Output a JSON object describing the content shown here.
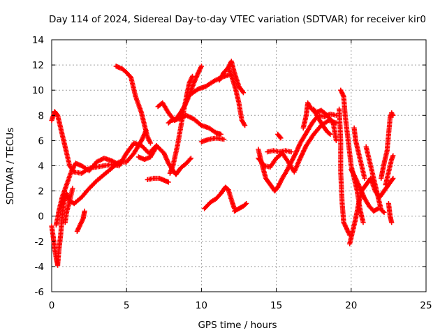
{
  "chart_data": {
    "type": "scatter",
    "title": "Day 114 of 2024, Sidereal Day-to-day VTEC variation (SDTVAR) for receiver kir0",
    "xlabel": "GPS time / hours",
    "ylabel": "SDTVAR / TECUs",
    "xlim": [
      0,
      25
    ],
    "ylim": [
      -6,
      14
    ],
    "xticks": [
      "0",
      "5",
      "10",
      "15",
      "20",
      "25"
    ],
    "yticks": [
      "-6",
      "-4",
      "-2",
      "0",
      "2",
      "4",
      "6",
      "8",
      "10",
      "12",
      "14"
    ],
    "grid": true,
    "marker": "+",
    "color": "#ff0000",
    "series": [
      {
        "name": "arc-01",
        "points": [
          [
            0.0,
            7.6
          ],
          [
            0.2,
            8.3
          ],
          [
            0.4,
            8.0
          ],
          [
            0.6,
            7.0
          ],
          [
            0.8,
            6.0
          ],
          [
            1.0,
            5.0
          ],
          [
            1.2,
            4.0
          ],
          [
            1.5,
            3.5
          ],
          [
            2.0,
            3.4
          ],
          [
            2.5,
            3.8
          ],
          [
            3.0,
            3.9
          ],
          [
            3.5,
            4.0
          ],
          [
            4.0,
            4.1
          ],
          [
            4.5,
            4.0
          ]
        ]
      },
      {
        "name": "arc-02",
        "points": [
          [
            0.0,
            -0.8
          ],
          [
            0.1,
            -1.6
          ],
          [
            0.2,
            -2.6
          ],
          [
            0.3,
            -3.3
          ],
          [
            0.4,
            -3.9
          ],
          [
            0.5,
            -2.5
          ],
          [
            0.6,
            -1.5
          ],
          [
            0.7,
            0.0
          ],
          [
            0.8,
            1.0
          ],
          [
            1.0,
            1.8
          ],
          [
            1.2,
            1.2
          ],
          [
            1.5,
            1.0
          ],
          [
            2.0,
            1.5
          ],
          [
            2.5,
            2.2
          ],
          [
            3.0,
            2.8
          ],
          [
            3.5,
            3.3
          ],
          [
            4.0,
            3.8
          ],
          [
            4.5,
            4.3
          ],
          [
            5.0,
            4.3
          ],
          [
            5.5,
            5.0
          ],
          [
            6.0,
            6.0
          ],
          [
            6.3,
            6.8
          ]
        ]
      },
      {
        "name": "arc-03",
        "points": [
          [
            0.3,
            -0.7
          ],
          [
            0.5,
            0.5
          ],
          [
            0.7,
            1.5
          ],
          [
            1.0,
            2.5
          ],
          [
            1.3,
            3.5
          ],
          [
            1.6,
            4.2
          ],
          [
            2.0,
            4.0
          ],
          [
            2.5,
            3.6
          ],
          [
            3.0,
            4.3
          ],
          [
            3.5,
            4.6
          ],
          [
            4.0,
            4.4
          ],
          [
            4.5,
            4.1
          ]
        ]
      },
      {
        "name": "arc-04",
        "points": [
          [
            0.9,
            -0.5
          ],
          [
            1.0,
            0.3
          ],
          [
            1.2,
            1.2
          ],
          [
            1.4,
            2.2
          ]
        ]
      },
      {
        "name": "arc-05",
        "points": [
          [
            1.7,
            -1.2
          ],
          [
            1.9,
            -0.7
          ],
          [
            2.1,
            -0.2
          ],
          [
            2.2,
            0.4
          ]
        ]
      },
      {
        "name": "arc-06",
        "points": [
          [
            4.3,
            11.9
          ],
          [
            4.7,
            11.7
          ],
          [
            5.0,
            11.4
          ],
          [
            5.3,
            11.0
          ],
          [
            5.6,
            9.5
          ],
          [
            6.0,
            8.2
          ],
          [
            6.2,
            7.2
          ],
          [
            6.4,
            6.3
          ],
          [
            6.6,
            5.8
          ]
        ]
      },
      {
        "name": "arc-07",
        "points": [
          [
            4.5,
            4.0
          ],
          [
            5.0,
            5.0
          ],
          [
            5.5,
            5.8
          ],
          [
            6.0,
            5.6
          ],
          [
            6.5,
            5.0
          ],
          [
            7.0,
            5.6
          ],
          [
            7.5,
            5.0
          ],
          [
            7.8,
            4.2
          ],
          [
            8.0,
            3.8
          ],
          [
            8.3,
            3.3
          ],
          [
            8.6,
            3.8
          ],
          [
            9.0,
            4.2
          ],
          [
            9.3,
            4.6
          ]
        ]
      },
      {
        "name": "arc-08",
        "points": [
          [
            5.8,
            4.7
          ],
          [
            6.2,
            4.5
          ],
          [
            6.6,
            4.7
          ],
          [
            7.0,
            5.5
          ]
        ]
      },
      {
        "name": "arc-09",
        "points": [
          [
            6.4,
            2.9
          ],
          [
            6.8,
            3.0
          ],
          [
            7.2,
            3.0
          ],
          [
            7.6,
            2.8
          ],
          [
            7.8,
            2.7
          ]
        ]
      },
      {
        "name": "arc-10",
        "points": [
          [
            7.1,
            8.7
          ],
          [
            7.4,
            9.0
          ],
          [
            7.8,
            8.2
          ],
          [
            8.2,
            7.6
          ],
          [
            8.6,
            7.8
          ],
          [
            9.0,
            8.0
          ],
          [
            9.5,
            7.7
          ],
          [
            10.0,
            7.2
          ],
          [
            10.5,
            7.0
          ],
          [
            11.0,
            6.6
          ],
          [
            11.3,
            6.5
          ]
        ]
      },
      {
        "name": "arc-11",
        "points": [
          [
            7.8,
            7.4
          ],
          [
            8.0,
            7.6
          ],
          [
            8.3,
            7.7
          ],
          [
            8.6,
            8.2
          ],
          [
            8.9,
            8.8
          ],
          [
            9.2,
            9.6
          ],
          [
            9.5,
            10.6
          ],
          [
            9.8,
            11.4
          ],
          [
            10.0,
            11.9
          ]
        ]
      },
      {
        "name": "arc-12",
        "points": [
          [
            7.9,
            3.4
          ],
          [
            8.1,
            4.0
          ],
          [
            8.4,
            5.6
          ],
          [
            8.7,
            7.6
          ],
          [
            9.0,
            9.5
          ],
          [
            9.2,
            10.6
          ],
          [
            9.4,
            11.1
          ]
        ]
      },
      {
        "name": "arc-13",
        "points": [
          [
            9.3,
            9.7
          ],
          [
            9.8,
            10.1
          ],
          [
            10.3,
            10.3
          ],
          [
            10.8,
            10.7
          ],
          [
            11.3,
            11.0
          ],
          [
            11.8,
            11.2
          ],
          [
            12.0,
            11.2
          ]
        ]
      },
      {
        "name": "arc-14",
        "points": [
          [
            10.0,
            5.9
          ],
          [
            10.5,
            6.1
          ],
          [
            11.0,
            6.2
          ],
          [
            11.5,
            6.1
          ]
        ]
      },
      {
        "name": "arc-15",
        "points": [
          [
            10.2,
            0.6
          ],
          [
            10.6,
            1.1
          ],
          [
            11.0,
            1.4
          ],
          [
            11.3,
            1.8
          ],
          [
            11.6,
            2.3
          ],
          [
            11.8,
            2.1
          ],
          [
            12.0,
            1.3
          ],
          [
            12.2,
            0.6
          ]
        ]
      },
      {
        "name": "arc-16",
        "points": [
          [
            11.2,
            10.8
          ],
          [
            11.5,
            11.4
          ],
          [
            11.8,
            11.8
          ],
          [
            12.0,
            12.3
          ],
          [
            12.2,
            11.4
          ],
          [
            12.5,
            10.3
          ],
          [
            12.8,
            9.8
          ]
        ]
      },
      {
        "name": "arc-17",
        "points": [
          [
            11.8,
            11.8
          ],
          [
            12.1,
            10.8
          ],
          [
            12.3,
            10.0
          ],
          [
            12.5,
            9.0
          ],
          [
            12.7,
            7.6
          ],
          [
            12.9,
            7.2
          ]
        ]
      },
      {
        "name": "arc-18",
        "points": [
          [
            12.2,
            0.4
          ],
          [
            12.5,
            0.6
          ],
          [
            12.8,
            0.8
          ],
          [
            13.0,
            1.0
          ]
        ]
      },
      {
        "name": "arc-19",
        "points": [
          [
            13.8,
            5.3
          ],
          [
            14.0,
            4.3
          ],
          [
            14.3,
            3.0
          ],
          [
            14.6,
            2.5
          ],
          [
            14.9,
            2.0
          ],
          [
            15.1,
            2.3
          ],
          [
            15.4,
            3.0
          ],
          [
            15.7,
            3.6
          ],
          [
            16.0,
            4.3
          ],
          [
            16.3,
            5.0
          ],
          [
            16.6,
            5.8
          ],
          [
            17.0,
            6.6
          ],
          [
            17.4,
            7.4
          ],
          [
            17.8,
            8.0
          ],
          [
            18.2,
            7.9
          ],
          [
            18.6,
            8.1
          ],
          [
            19.0,
            8.0
          ]
        ]
      },
      {
        "name": "arc-20",
        "points": [
          [
            13.8,
            4.6
          ],
          [
            14.2,
            4.0
          ],
          [
            14.6,
            3.9
          ],
          [
            15.0,
            4.6
          ],
          [
            15.4,
            5.0
          ],
          [
            15.8,
            4.3
          ],
          [
            16.2,
            3.5
          ],
          [
            16.6,
            4.6
          ],
          [
            17.0,
            5.6
          ],
          [
            17.5,
            6.5
          ],
          [
            18.0,
            7.2
          ],
          [
            18.5,
            7.6
          ],
          [
            19.0,
            7.4
          ]
        ]
      },
      {
        "name": "arc-21",
        "points": [
          [
            14.4,
            5.1
          ],
          [
            14.8,
            5.2
          ],
          [
            15.2,
            5.1
          ],
          [
            15.6,
            5.2
          ],
          [
            16.0,
            5.1
          ]
        ]
      },
      {
        "name": "arc-22",
        "points": [
          [
            15.1,
            6.5
          ],
          [
            15.3,
            6.2
          ]
        ]
      },
      {
        "name": "arc-23",
        "points": [
          [
            16.8,
            7.0
          ],
          [
            17.0,
            8.0
          ],
          [
            17.1,
            9.0
          ],
          [
            17.3,
            8.6
          ],
          [
            17.6,
            8.2
          ],
          [
            18.0,
            8.4
          ],
          [
            18.4,
            8.0
          ],
          [
            18.8,
            7.4
          ],
          [
            19.0,
            6.0
          ]
        ]
      },
      {
        "name": "arc-24",
        "points": [
          [
            17.5,
            8.5
          ],
          [
            17.8,
            7.8
          ],
          [
            18.1,
            7.2
          ],
          [
            18.4,
            6.7
          ],
          [
            18.6,
            6.5
          ]
        ]
      },
      {
        "name": "arc-25",
        "points": [
          [
            19.3,
            10.0
          ],
          [
            19.5,
            9.5
          ],
          [
            19.6,
            8.0
          ],
          [
            19.8,
            6.0
          ],
          [
            20.0,
            4.0
          ],
          [
            20.2,
            3.0
          ],
          [
            20.4,
            2.0
          ],
          [
            20.6,
            0.5
          ],
          [
            20.8,
            -0.5
          ]
        ]
      },
      {
        "name": "arc-26",
        "points": [
          [
            19.2,
            8.5
          ],
          [
            19.3,
            6.0
          ],
          [
            19.3,
            3.5
          ],
          [
            19.4,
            1.0
          ],
          [
            19.5,
            -0.5
          ],
          [
            19.7,
            -1.0
          ],
          [
            19.9,
            -1.5
          ]
        ]
      },
      {
        "name": "arc-27",
        "points": [
          [
            19.9,
            -2.2
          ],
          [
            20.1,
            -1.2
          ],
          [
            20.3,
            -0.2
          ],
          [
            20.5,
            1.0
          ],
          [
            20.7,
            2.0
          ],
          [
            21.0,
            2.5
          ],
          [
            21.3,
            3.0
          ],
          [
            21.6,
            2.0
          ],
          [
            21.9,
            1.5
          ],
          [
            22.2,
            2.0
          ],
          [
            22.5,
            2.5
          ],
          [
            22.8,
            3.0
          ]
        ]
      },
      {
        "name": "arc-28",
        "points": [
          [
            20.0,
            3.7
          ],
          [
            20.3,
            3.0
          ],
          [
            20.6,
            2.2
          ],
          [
            20.9,
            1.4
          ],
          [
            21.2,
            0.8
          ],
          [
            21.5,
            0.4
          ],
          [
            21.8,
            0.6
          ]
        ]
      },
      {
        "name": "arc-29",
        "points": [
          [
            20.2,
            7.0
          ],
          [
            20.3,
            6.0
          ],
          [
            20.5,
            5.0
          ],
          [
            20.7,
            4.0
          ],
          [
            20.9,
            3.0
          ]
        ]
      },
      {
        "name": "arc-30",
        "points": [
          [
            21.0,
            5.5
          ],
          [
            21.2,
            4.5
          ],
          [
            21.4,
            3.5
          ],
          [
            21.6,
            2.5
          ],
          [
            21.8,
            1.5
          ],
          [
            22.0,
            0.5
          ],
          [
            22.2,
            0.3
          ]
        ]
      },
      {
        "name": "arc-31",
        "points": [
          [
            22.0,
            3.0
          ],
          [
            22.2,
            4.2
          ],
          [
            22.4,
            5.2
          ],
          [
            22.5,
            6.5
          ],
          [
            22.6,
            7.8
          ],
          [
            22.7,
            8.2
          ],
          [
            22.8,
            8.0
          ]
        ]
      },
      {
        "name": "arc-32",
        "points": [
          [
            22.3,
            2.5
          ],
          [
            22.5,
            3.5
          ],
          [
            22.7,
            4.5
          ],
          [
            22.8,
            4.8
          ]
        ]
      },
      {
        "name": "arc-33",
        "points": [
          [
            22.5,
            1.0
          ],
          [
            22.6,
            0.0
          ],
          [
            22.7,
            -0.5
          ]
        ]
      }
    ]
  }
}
